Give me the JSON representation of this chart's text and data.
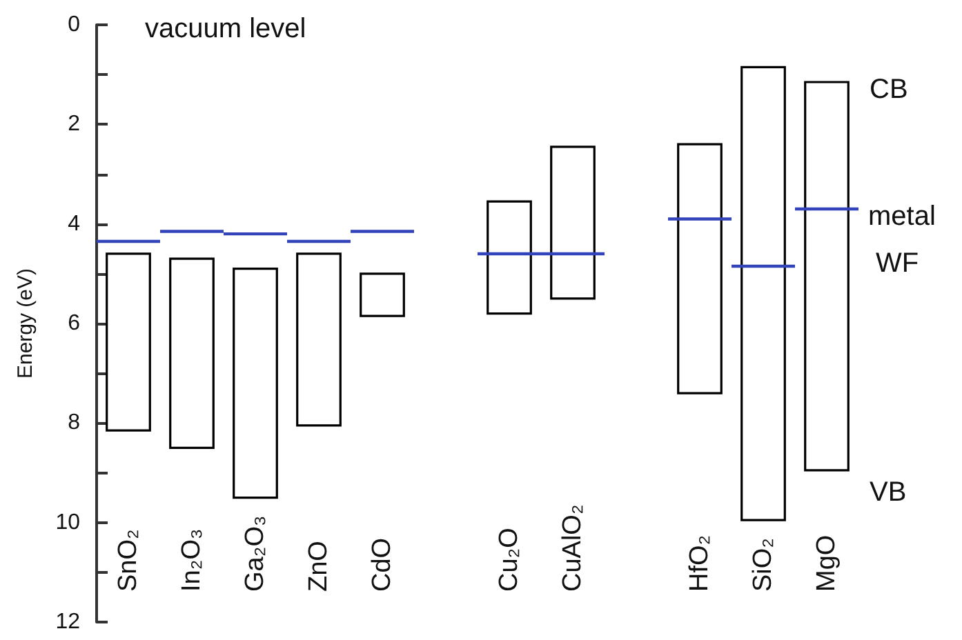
{
  "chart_data": {
    "type": "bar",
    "ylabel": "Energy (eV)",
    "annotations": [
      "vacuum level",
      "CB",
      "metal WF",
      "VB"
    ],
    "categories": [
      "SnO₂",
      "In₂O₃",
      "Ga₂O₃",
      "ZnO",
      "CdO",
      null,
      "Cu₂O",
      "CuAlO₂",
      null,
      "HfO₂",
      "SiO₂",
      "MgO"
    ],
    "series": [
      {
        "color": "#000000",
        "base": [
          4.6,
          4.7,
          4.9,
          4.6,
          5.0,
          null,
          3.55,
          2.45,
          null,
          2.4,
          0.85,
          1.15
        ],
        "values": [
          3.55,
          3.8,
          4.6,
          3.45,
          0.85,
          null,
          2.25,
          3.05,
          null,
          5.0,
          9.1,
          7.8
        ]
      },
      {
        "color": "#3344bb",
        "base": [
          4.35,
          4.15,
          4.2,
          4.35,
          4.15,
          null,
          4.6,
          4.6,
          null,
          3.9,
          4.85,
          3.7
        ],
        "values": [
          0,
          0,
          0,
          0,
          0,
          null,
          0,
          0,
          null,
          0,
          0,
          0
        ]
      }
    ],
    "ylim": [
      12,
      0
    ],
    "yticks": [
      0,
      {
        "value": 1,
        "label": null
      },
      2,
      {
        "value": 3,
        "label": null
      },
      4,
      {
        "value": 5,
        "label": null
      },
      6,
      {
        "value": 7,
        "label": null
      },
      8,
      {
        "value": 9,
        "label": null
      },
      10,
      {
        "value": 11,
        "label": null
      },
      12
    ],
    "grid": false
  }
}
